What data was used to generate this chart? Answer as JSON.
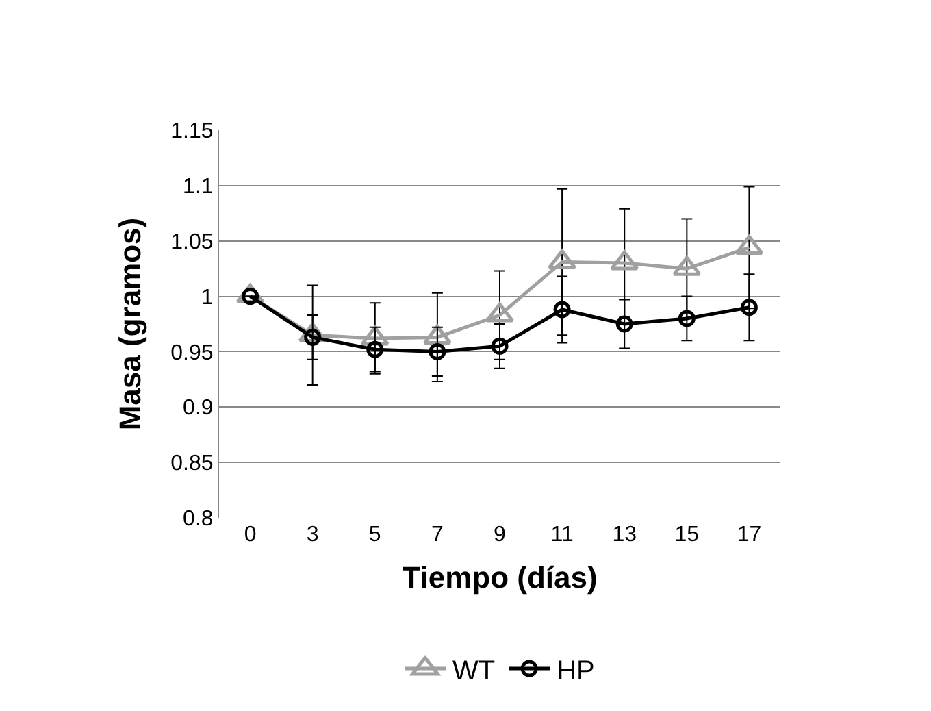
{
  "chart_data": {
    "type": "line",
    "xlabel": "Tiempo (días)",
    "ylabel": "Masa (gramos)",
    "categories": [
      "0",
      "3",
      "5",
      "7",
      "9",
      "11",
      "13",
      "15",
      "17"
    ],
    "series": [
      {
        "name": "WT",
        "color": "#a0a0a0",
        "marker": "triangle",
        "values": [
          1.0,
          0.965,
          0.962,
          0.963,
          0.983,
          1.031,
          1.03,
          1.025,
          1.044
        ],
        "errors": [
          null,
          0.045,
          0.032,
          0.04,
          0.04,
          0.066,
          0.049,
          0.045,
          0.055
        ]
      },
      {
        "name": "HP",
        "color": "#000000",
        "marker": "circle",
        "values": [
          1.0,
          0.963,
          0.952,
          0.95,
          0.955,
          0.988,
          0.975,
          0.98,
          0.99
        ],
        "errors": [
          null,
          0.02,
          0.02,
          0.022,
          0.02,
          0.03,
          0.022,
          0.02,
          0.03
        ]
      }
    ],
    "ylim": [
      0.8,
      1.15
    ],
    "yticks": [
      {
        "value": 0.8,
        "label": "0.8"
      },
      0.85,
      {
        "value": 0.9,
        "label": "0.9"
      },
      0.95,
      {
        "value": 1,
        "label": "1"
      },
      1.05,
      {
        "value": 1.1,
        "label": "1.1"
      },
      1.15
    ],
    "grid": "y",
    "legend": "bottom",
    "line_style": "solid"
  }
}
